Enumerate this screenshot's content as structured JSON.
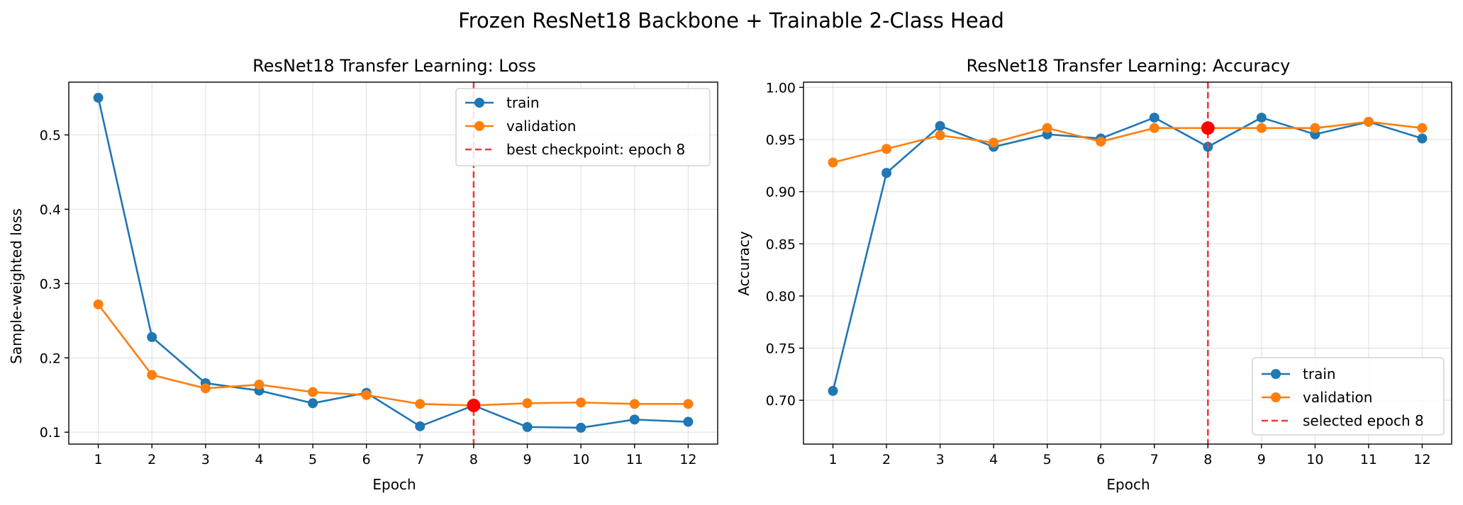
{
  "figure": {
    "title": "Frozen ResNet18 Backbone + Trainable 2-Class Head"
  },
  "colors": {
    "train": "#1f77b4",
    "validation": "#ff7f0e",
    "selected_line": "#ee3a3a",
    "selected_point": "#ff0000"
  },
  "chart_data": [
    {
      "type": "line",
      "title": "ResNet18 Transfer Learning: Loss",
      "xlabel": "Epoch",
      "ylabel": "Sample-weighted loss",
      "x": [
        1,
        2,
        3,
        4,
        5,
        6,
        7,
        8,
        9,
        10,
        11,
        12
      ],
      "xticks": [
        "1",
        "2",
        "3",
        "4",
        "5",
        "6",
        "7",
        "8",
        "9",
        "10",
        "11",
        "12"
      ],
      "xlim": [
        0.45,
        12.55
      ],
      "ylim": [
        0.084,
        0.571
      ],
      "yticks": [
        "0.1",
        "0.2",
        "0.3",
        "0.4",
        "0.5"
      ],
      "ytick_values": [
        0.1,
        0.2,
        0.3,
        0.4,
        0.5
      ],
      "grid": true,
      "legend_position": "top-right",
      "series": [
        {
          "name": "train",
          "values": [
            0.55,
            0.228,
            0.166,
            0.156,
            0.139,
            0.153,
            0.108,
            0.136,
            0.107,
            0.106,
            0.117,
            0.114
          ]
        },
        {
          "name": "validation",
          "values": [
            0.272,
            0.177,
            0.159,
            0.164,
            0.154,
            0.15,
            0.138,
            0.136,
            0.139,
            0.14,
            0.138,
            0.138
          ]
        }
      ],
      "marker_line": {
        "x": 8,
        "label": "best checkpoint: epoch 8"
      },
      "highlight_point": {
        "x": 8,
        "y": 0.136
      }
    },
    {
      "type": "line",
      "title": "ResNet18 Transfer Learning: Accuracy",
      "xlabel": "Epoch",
      "ylabel": "Accuracy",
      "x": [
        1,
        2,
        3,
        4,
        5,
        6,
        7,
        8,
        9,
        10,
        11,
        12
      ],
      "xticks": [
        "1",
        "2",
        "3",
        "4",
        "5",
        "6",
        "7",
        "8",
        "9",
        "10",
        "11",
        "12"
      ],
      "xlim": [
        0.45,
        12.55
      ],
      "ylim": [
        0.658,
        1.005
      ],
      "yticks": [
        "0.70",
        "0.75",
        "0.80",
        "0.85",
        "0.90",
        "0.95",
        "1.00"
      ],
      "ytick_values": [
        0.7,
        0.75,
        0.8,
        0.85,
        0.9,
        0.95,
        1.0
      ],
      "grid": true,
      "legend_position": "bottom-right",
      "series": [
        {
          "name": "train",
          "values": [
            0.709,
            0.918,
            0.963,
            0.943,
            0.955,
            0.951,
            0.971,
            0.943,
            0.971,
            0.955,
            0.967,
            0.951
          ]
        },
        {
          "name": "validation",
          "values": [
            0.928,
            0.941,
            0.954,
            0.947,
            0.961,
            0.948,
            0.961,
            0.961,
            0.961,
            0.961,
            0.967,
            0.961
          ]
        }
      ],
      "marker_line": {
        "x": 8,
        "label": "selected epoch 8"
      },
      "highlight_point": {
        "x": 8,
        "y": 0.961
      }
    }
  ]
}
